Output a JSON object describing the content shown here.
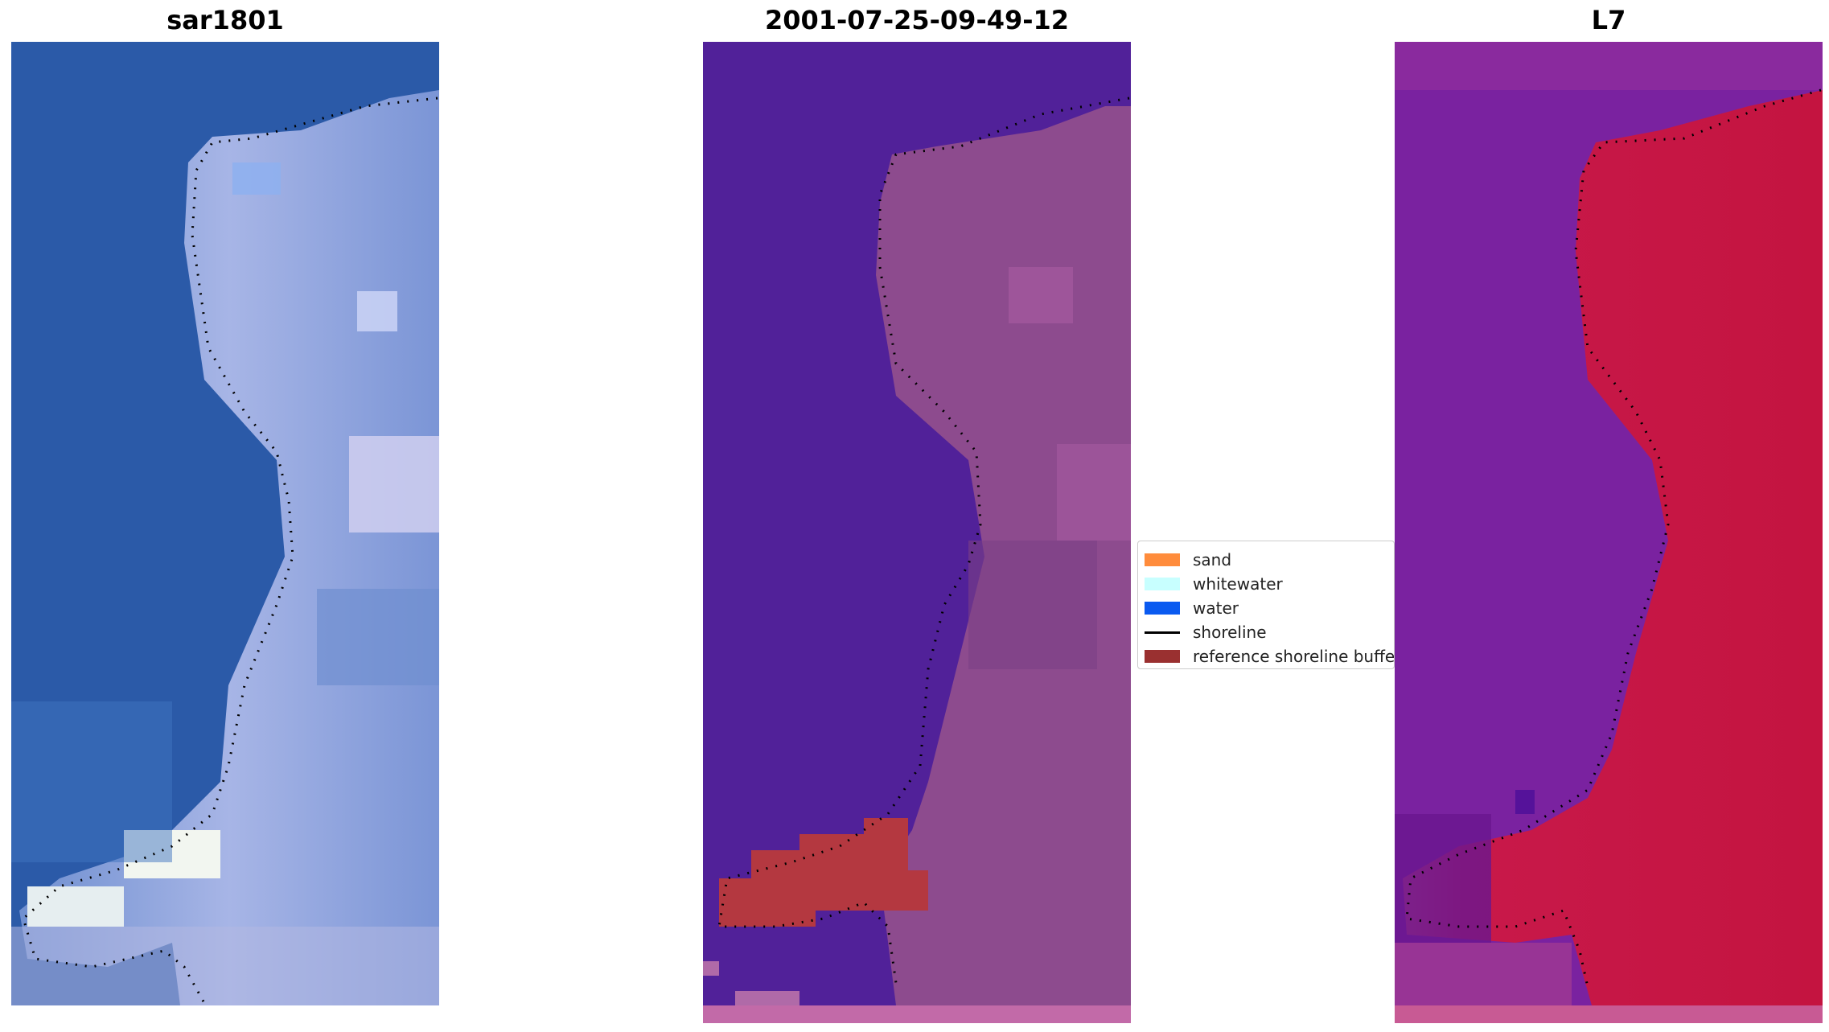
{
  "panels": [
    {
      "title": "sar1801"
    },
    {
      "title": "2001-07-25-09-49-12"
    },
    {
      "title": "L7"
    }
  ],
  "legend": {
    "items": [
      {
        "label": "sand",
        "color": "#ff8c3c",
        "kind": "patch"
      },
      {
        "label": "whitewater",
        "color": "#c8ffff",
        "kind": "patch"
      },
      {
        "label": "water",
        "color": "#0a5af0",
        "kind": "patch"
      },
      {
        "label": "shoreline",
        "color": "#000000",
        "kind": "line"
      },
      {
        "label": "reference shoreline buffer",
        "color": "#9a3030",
        "kind": "patch"
      }
    ]
  },
  "colors": {
    "rgb_water": "#2a5aa8",
    "rgb_land": "#8fa8d8",
    "classified_water": "#512199",
    "classified_land": "#8e4a8e",
    "buffer": "#b43840",
    "index_low": "#7a22a0",
    "index_high": "#c41440"
  }
}
